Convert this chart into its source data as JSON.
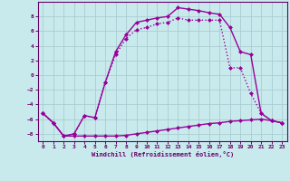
{
  "background_color": "#c8eaed",
  "grid_color": "#a8cdd0",
  "line_color": "#990099",
  "xlabel": "Windchill (Refroidissement éolien,°C)",
  "xlabel_color": "#660066",
  "tick_color": "#660066",
  "xlim": [
    -0.5,
    23.5
  ],
  "ylim": [
    -9,
    10
  ],
  "yticks": [
    -8,
    -6,
    -4,
    -2,
    0,
    2,
    4,
    6,
    8
  ],
  "xticks": [
    0,
    1,
    2,
    3,
    4,
    5,
    6,
    7,
    8,
    9,
    10,
    11,
    12,
    13,
    14,
    15,
    16,
    17,
    18,
    19,
    20,
    21,
    22,
    23
  ],
  "line1_x": [
    0,
    1,
    2,
    3,
    4,
    5,
    6,
    7,
    8,
    9,
    10,
    11,
    12,
    13,
    14,
    15,
    16,
    17,
    18,
    19,
    20,
    21,
    22,
    23
  ],
  "line1_y": [
    -5.2,
    -6.5,
    -8.3,
    -8.3,
    -8.3,
    -8.3,
    -8.3,
    -8.3,
    -8.2,
    -8.0,
    -7.8,
    -7.6,
    -7.4,
    -7.2,
    -7.0,
    -6.8,
    -6.6,
    -6.5,
    -6.3,
    -6.2,
    -6.1,
    -6.0,
    -6.2,
    -6.5
  ],
  "line2_x": [
    0,
    1,
    2,
    3,
    4,
    5,
    6,
    7,
    8,
    9,
    10,
    11,
    12,
    13,
    14,
    15,
    16,
    17,
    18,
    19,
    20,
    21,
    22,
    23
  ],
  "line2_y": [
    -5.2,
    -6.5,
    -8.3,
    -8.0,
    -5.5,
    -5.8,
    -1.0,
    3.2,
    5.5,
    7.2,
    7.5,
    7.8,
    8.0,
    9.2,
    9.0,
    8.8,
    8.5,
    8.3,
    6.5,
    3.2,
    2.8,
    -5.2,
    -6.2,
    -6.5
  ],
  "line3_x": [
    0,
    1,
    2,
    3,
    4,
    5,
    6,
    7,
    8,
    9,
    10,
    11,
    12,
    13,
    14,
    15,
    16,
    17,
    18,
    19,
    20,
    21,
    22,
    23
  ],
  "line3_y": [
    -5.2,
    -6.5,
    -8.3,
    -8.0,
    -5.5,
    -5.8,
    -1.0,
    2.8,
    5.0,
    6.2,
    6.5,
    7.0,
    7.2,
    7.8,
    7.5,
    7.5,
    7.5,
    7.5,
    1.0,
    1.0,
    -2.5,
    -5.2,
    -6.2,
    -6.5
  ],
  "line1_style": "-",
  "line2_style": "-",
  "line3_style": ":",
  "marker": "D",
  "markersize": 2.5,
  "linewidth": 1.0
}
